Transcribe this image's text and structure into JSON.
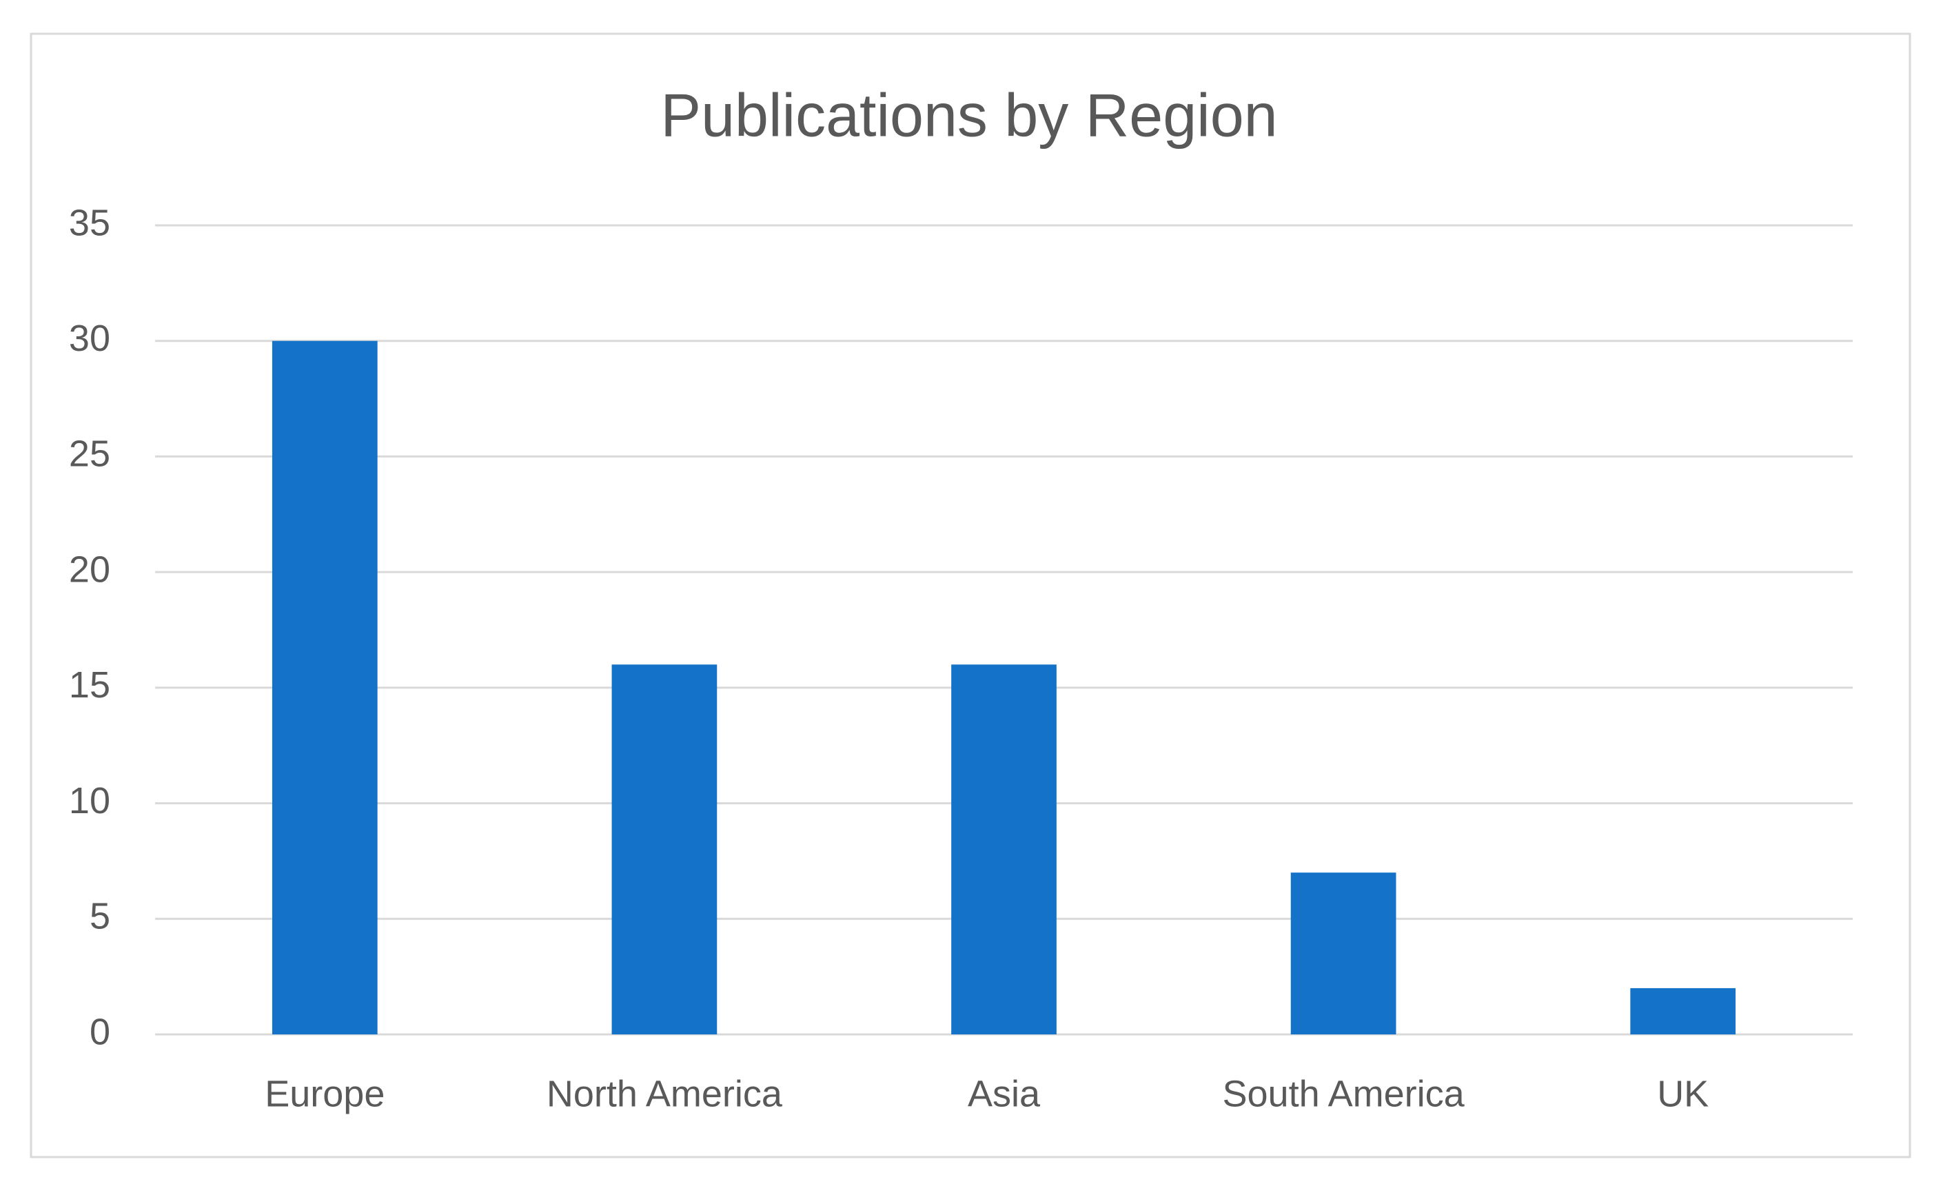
{
  "chart_data": {
    "type": "bar",
    "title": "Publications by Region",
    "categories": [
      "Europe",
      "North America",
      "Asia",
      "South America",
      "UK"
    ],
    "values": [
      30,
      16,
      16,
      7,
      2
    ],
    "color": "#1572c9",
    "ylim": [
      0,
      35
    ],
    "yticks": [
      0,
      5,
      10,
      15,
      20,
      25,
      30,
      35
    ],
    "grid": true
  }
}
